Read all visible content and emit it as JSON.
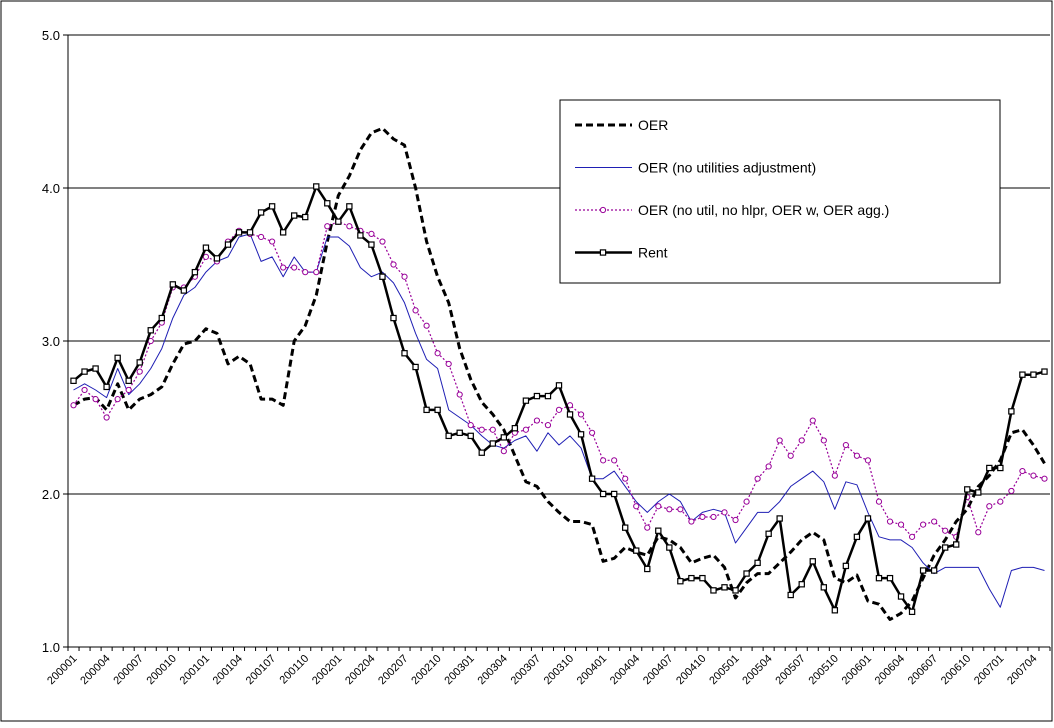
{
  "chart_data": {
    "type": "line",
    "categories": [
      "200001",
      null,
      null,
      "200004",
      null,
      null,
      "200007",
      null,
      null,
      "200010",
      null,
      null,
      "200101",
      null,
      null,
      "200104",
      null,
      null,
      "200107",
      null,
      null,
      "200110",
      null,
      null,
      "200201",
      null,
      null,
      "200204",
      null,
      null,
      "200207",
      null,
      null,
      "200210",
      null,
      null,
      "200301",
      null,
      null,
      "200304",
      null,
      null,
      "200307",
      null,
      null,
      "200310",
      null,
      null,
      "200401",
      null,
      null,
      "200404",
      null,
      null,
      "200407",
      null,
      null,
      "200410",
      null,
      null,
      "200501",
      null,
      null,
      "200504",
      null,
      null,
      "200507",
      null,
      null,
      "200510",
      null,
      null,
      "200601",
      null,
      null,
      "200604",
      null,
      null,
      "200607",
      null,
      null,
      "200610",
      null,
      null,
      "200701",
      null,
      null,
      "200704",
      null
    ],
    "ylim": [
      1,
      5
    ],
    "yticks": [
      {
        "value": 1,
        "label": "1.0"
      },
      {
        "value": 2,
        "label": "2.0"
      },
      {
        "value": 3,
        "label": "3.0"
      },
      {
        "value": 4,
        "label": "4.0"
      },
      {
        "value": 5,
        "label": "5.0"
      }
    ],
    "grid": true,
    "series": [
      {
        "name": "OER",
        "color": "#000000",
        "dash": "dashed",
        "width": 3,
        "marker": null,
        "values": [
          2.58,
          2.62,
          2.63,
          2.55,
          2.72,
          2.55,
          2.62,
          2.65,
          2.7,
          2.85,
          2.98,
          3.0,
          3.08,
          3.05,
          2.85,
          2.9,
          2.85,
          2.62,
          2.62,
          2.58,
          3.0,
          3.1,
          3.3,
          3.65,
          3.95,
          4.08,
          4.25,
          4.36,
          4.39,
          4.32,
          4.28,
          4.0,
          3.65,
          3.42,
          3.25,
          2.95,
          2.75,
          2.6,
          2.52,
          2.42,
          2.25,
          2.08,
          2.05,
          1.95,
          1.88,
          1.82,
          1.82,
          1.8,
          1.56,
          1.58,
          1.65,
          1.62,
          1.6,
          1.72,
          1.7,
          1.65,
          1.55,
          1.58,
          1.6,
          1.52,
          1.32,
          1.42,
          1.48,
          1.48,
          1.55,
          1.62,
          1.7,
          1.75,
          1.7,
          1.45,
          1.42,
          1.47,
          1.3,
          1.28,
          1.18,
          1.22,
          1.3,
          1.45,
          1.6,
          1.7,
          1.82,
          1.9,
          2.05,
          2.12,
          2.22,
          2.4,
          2.42,
          2.32,
          2.2
        ]
      },
      {
        "name": "OER (no utilities adjustment)",
        "color": "#1f1fb4",
        "dash": "solid",
        "width": 1,
        "marker": null,
        "values": [
          2.68,
          2.72,
          2.68,
          2.63,
          2.82,
          2.65,
          2.72,
          2.82,
          2.95,
          3.15,
          3.3,
          3.35,
          3.45,
          3.52,
          3.55,
          3.68,
          3.7,
          3.52,
          3.55,
          3.42,
          3.55,
          3.45,
          3.45,
          3.68,
          3.68,
          3.62,
          3.48,
          3.42,
          3.45,
          3.38,
          3.25,
          3.05,
          2.88,
          2.82,
          2.55,
          2.5,
          2.45,
          2.38,
          2.32,
          2.3,
          2.35,
          2.38,
          2.28,
          2.4,
          2.32,
          2.38,
          2.3,
          2.1,
          2.1,
          2.15,
          2.05,
          1.95,
          1.88,
          1.95,
          2.0,
          1.95,
          1.82,
          1.88,
          1.9,
          1.88,
          1.68,
          1.78,
          1.88,
          1.88,
          1.95,
          2.05,
          2.1,
          2.15,
          2.08,
          1.9,
          2.08,
          2.06,
          1.88,
          1.72,
          1.7,
          1.7,
          1.65,
          1.55,
          1.48,
          1.52,
          1.52,
          1.52,
          1.52,
          1.38,
          1.26,
          1.5,
          1.52,
          1.52,
          1.5
        ]
      },
      {
        "name": "OER (no util, no hlpr, OER w, OER agg.)",
        "color": "#990099",
        "dash": "dotted",
        "width": 1.2,
        "marker": "circle",
        "values": [
          2.58,
          2.68,
          2.62,
          2.5,
          2.62,
          2.68,
          2.8,
          3.0,
          3.12,
          3.35,
          3.35,
          3.42,
          3.55,
          3.52,
          3.65,
          3.72,
          3.7,
          3.68,
          3.65,
          3.48,
          3.48,
          3.45,
          3.45,
          3.75,
          3.78,
          3.75,
          3.72,
          3.7,
          3.65,
          3.5,
          3.42,
          3.2,
          3.1,
          2.92,
          2.85,
          2.65,
          2.45,
          2.42,
          2.42,
          2.28,
          2.4,
          2.42,
          2.48,
          2.45,
          2.55,
          2.58,
          2.52,
          2.4,
          2.22,
          2.22,
          2.1,
          1.92,
          1.78,
          1.92,
          1.9,
          1.9,
          1.82,
          1.85,
          1.85,
          1.88,
          1.83,
          1.95,
          2.1,
          2.18,
          2.35,
          2.25,
          2.35,
          2.48,
          2.35,
          2.12,
          2.32,
          2.25,
          2.22,
          1.95,
          1.82,
          1.8,
          1.72,
          1.8,
          1.82,
          1.76,
          1.72,
          1.98,
          1.75,
          1.92,
          1.95,
          2.02,
          2.15,
          2.12,
          2.1
        ]
      },
      {
        "name": "Rent",
        "color": "#000000",
        "dash": "solid",
        "width": 2.5,
        "marker": "square",
        "values": [
          2.74,
          2.8,
          2.82,
          2.7,
          2.89,
          2.74,
          2.86,
          3.07,
          3.15,
          3.37,
          3.33,
          3.45,
          3.61,
          3.54,
          3.63,
          3.71,
          3.71,
          3.84,
          3.88,
          3.71,
          3.82,
          3.81,
          4.01,
          3.9,
          3.78,
          3.88,
          3.69,
          3.63,
          3.42,
          3.15,
          2.92,
          2.83,
          2.55,
          2.55,
          2.38,
          2.4,
          2.38,
          2.27,
          2.33,
          2.37,
          2.43,
          2.61,
          2.64,
          2.64,
          2.71,
          2.52,
          2.39,
          2.1,
          2.0,
          2.0,
          1.78,
          1.63,
          1.51,
          1.76,
          1.65,
          1.43,
          1.45,
          1.45,
          1.37,
          1.39,
          1.37,
          1.48,
          1.55,
          1.74,
          1.84,
          1.34,
          1.41,
          1.56,
          1.39,
          1.24,
          1.53,
          1.72,
          1.84,
          1.45,
          1.45,
          1.33,
          1.23,
          1.5,
          1.5,
          1.65,
          1.67,
          2.03,
          2.01,
          2.17,
          2.17,
          2.54,
          2.78,
          2.78,
          2.8
        ]
      }
    ]
  }
}
